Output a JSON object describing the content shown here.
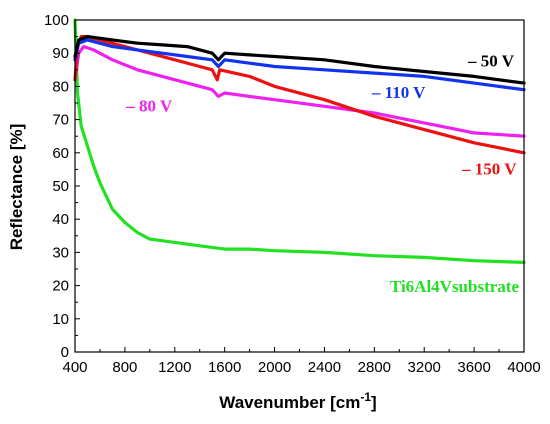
{
  "chart_data": {
    "type": "line",
    "xlabel": "Wavenumber [cm",
    "xlabel_sup": "-1",
    "xlabel_end": "]",
    "ylabel": "Reflectance [%]",
    "xlim": [
      400,
      4000
    ],
    "ylim": [
      0,
      100
    ],
    "x_ticks": [
      400,
      800,
      1200,
      1600,
      2000,
      2400,
      2800,
      3200,
      3600,
      4000
    ],
    "y_ticks": [
      0,
      10,
      20,
      30,
      40,
      50,
      60,
      70,
      80,
      90,
      100
    ],
    "grid": false,
    "legend": "inline-labels",
    "series": [
      {
        "name": "Ti6Al4Vsubstrate",
        "color": "#22e022",
        "points": [
          [
            400,
            100
          ],
          [
            420,
            78
          ],
          [
            450,
            68
          ],
          [
            500,
            62
          ],
          [
            550,
            56
          ],
          [
            600,
            51
          ],
          [
            700,
            43
          ],
          [
            800,
            39
          ],
          [
            900,
            36
          ],
          [
            1000,
            34
          ],
          [
            1200,
            33
          ],
          [
            1400,
            32
          ],
          [
            1600,
            31
          ],
          [
            1800,
            31
          ],
          [
            2000,
            30.5
          ],
          [
            2400,
            30
          ],
          [
            2800,
            29
          ],
          [
            3200,
            28.5
          ],
          [
            3600,
            27.5
          ],
          [
            4000,
            27
          ]
        ]
      },
      {
        "name": "– 80 V",
        "color": "#ee22ee",
        "points": [
          [
            400,
            82
          ],
          [
            430,
            90
          ],
          [
            470,
            92
          ],
          [
            550,
            91
          ],
          [
            700,
            88
          ],
          [
            900,
            85
          ],
          [
            1100,
            83
          ],
          [
            1300,
            81
          ],
          [
            1500,
            79
          ],
          [
            1550,
            77
          ],
          [
            1600,
            78
          ],
          [
            1800,
            77
          ],
          [
            2000,
            76
          ],
          [
            2400,
            74
          ],
          [
            2800,
            72
          ],
          [
            3200,
            69
          ],
          [
            3600,
            66
          ],
          [
            4000,
            65
          ]
        ]
      },
      {
        "name": "– 150 V",
        "color": "#ee1111",
        "points": [
          [
            400,
            82
          ],
          [
            420,
            92
          ],
          [
            450,
            95
          ],
          [
            500,
            95
          ],
          [
            600,
            94
          ],
          [
            800,
            92
          ],
          [
            1000,
            90
          ],
          [
            1200,
            88
          ],
          [
            1400,
            86
          ],
          [
            1500,
            85
          ],
          [
            1540,
            82
          ],
          [
            1560,
            85
          ],
          [
            1800,
            83
          ],
          [
            2000,
            80
          ],
          [
            2400,
            76
          ],
          [
            2800,
            71
          ],
          [
            3200,
            67
          ],
          [
            3600,
            63
          ],
          [
            4000,
            60
          ]
        ]
      },
      {
        "name": "– 110 V",
        "color": "#1133ee",
        "points": [
          [
            400,
            88
          ],
          [
            430,
            93
          ],
          [
            500,
            94
          ],
          [
            700,
            92
          ],
          [
            900,
            91
          ],
          [
            1100,
            90
          ],
          [
            1300,
            89
          ],
          [
            1500,
            88
          ],
          [
            1550,
            86
          ],
          [
            1600,
            88
          ],
          [
            1800,
            87
          ],
          [
            2000,
            86
          ],
          [
            2400,
            85
          ],
          [
            2800,
            84
          ],
          [
            3200,
            83
          ],
          [
            3600,
            81
          ],
          [
            4000,
            79
          ]
        ]
      },
      {
        "name": "– 50 V",
        "color": "#000000",
        "points": [
          [
            400,
            89
          ],
          [
            430,
            94
          ],
          [
            500,
            95
          ],
          [
            700,
            94
          ],
          [
            900,
            93
          ],
          [
            1100,
            92.5
          ],
          [
            1300,
            92
          ],
          [
            1500,
            90
          ],
          [
            1550,
            88
          ],
          [
            1600,
            90
          ],
          [
            1800,
            89.5
          ],
          [
            2000,
            89
          ],
          [
            2400,
            88
          ],
          [
            2800,
            86
          ],
          [
            3200,
            84.5
          ],
          [
            3600,
            83
          ],
          [
            4000,
            81
          ]
        ]
      }
    ],
    "labels": [
      {
        "text": "– 50 V",
        "color": "#000000",
        "x": 3920,
        "y": 86
      },
      {
        "text": "– 110 V",
        "color": "#1133ee",
        "x": 3210,
        "y": 76.5
      },
      {
        "text": "– 80 V",
        "color": "#ee22ee",
        "x": 1180,
        "y": 72.5
      },
      {
        "text": "– 150 V",
        "color": "#ee1111",
        "x": 3940,
        "y": 53.5
      },
      {
        "text": "Ti6Al4Vsubstrate",
        "color": "#22e022",
        "x": 3960,
        "y": 18
      }
    ]
  }
}
